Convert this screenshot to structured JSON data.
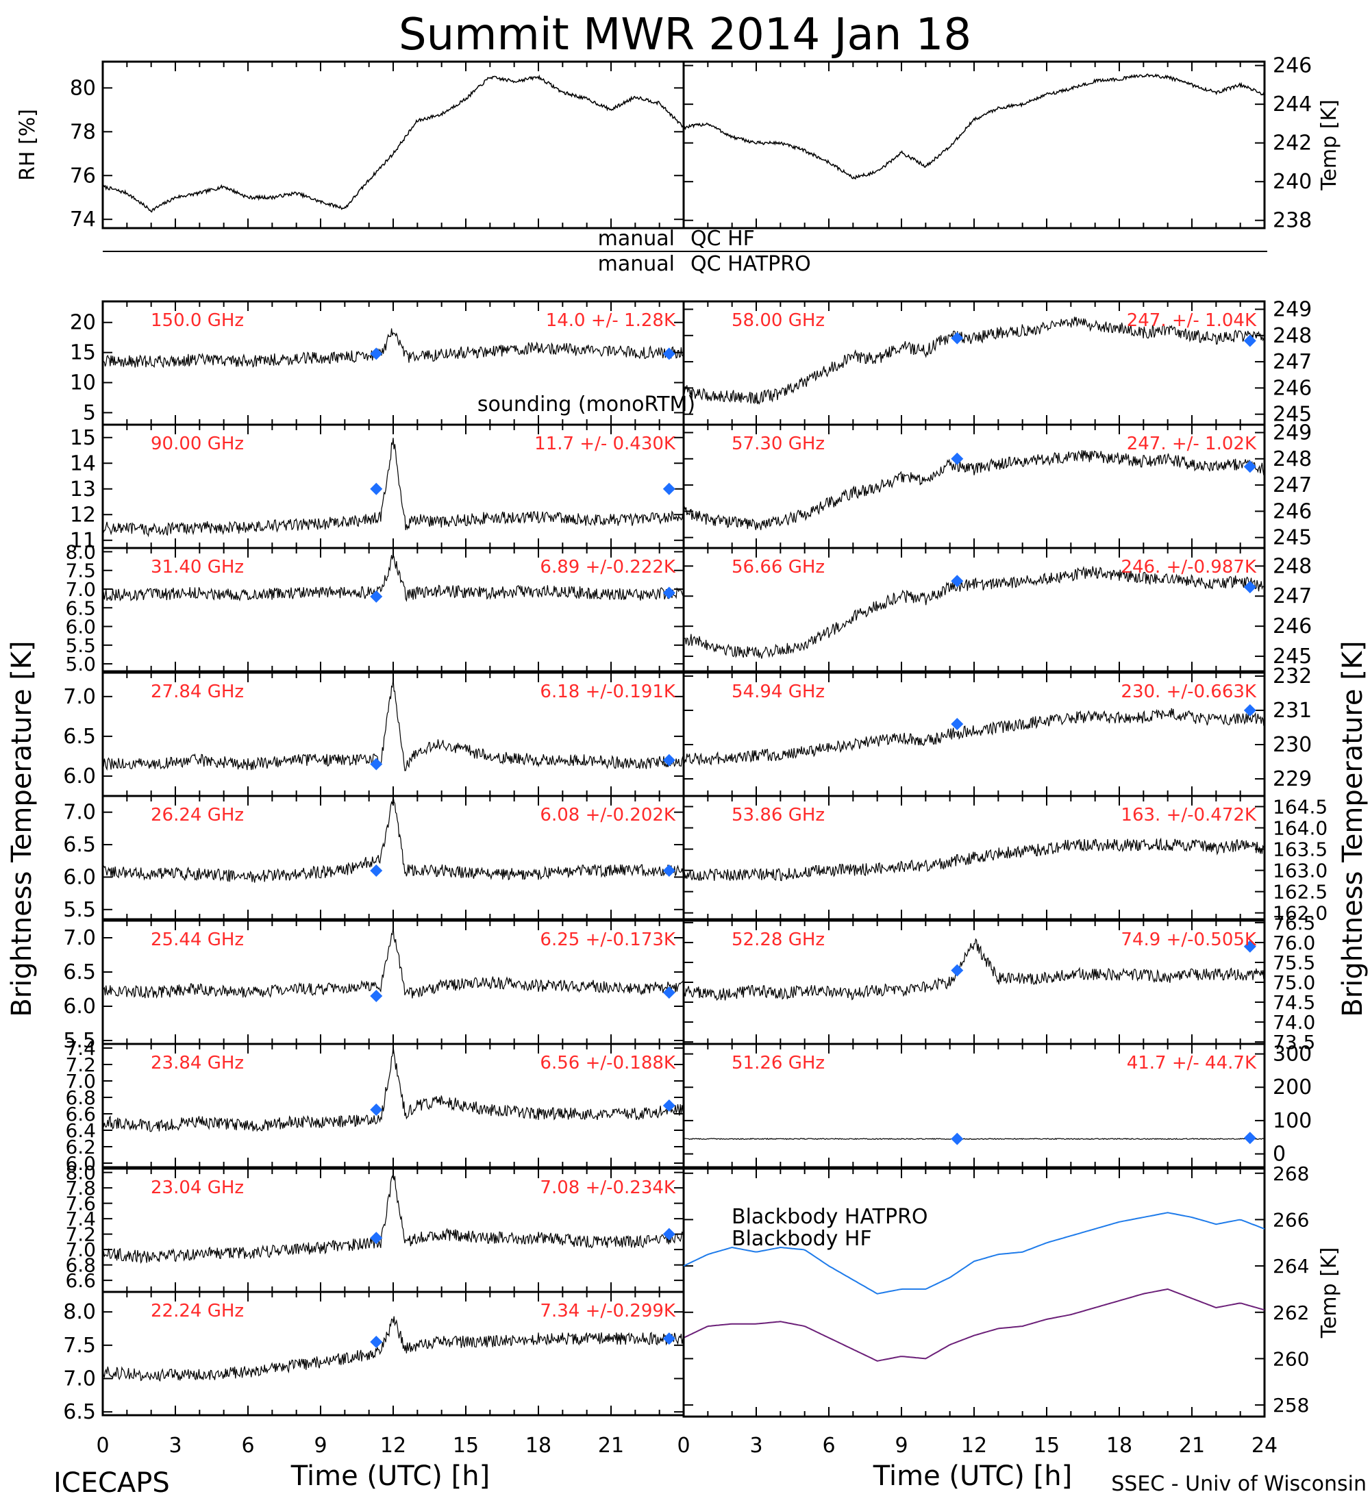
{
  "title": "Summit MWR 2014 Jan 18",
  "footer": {
    "left": "ICECAPS",
    "right": "SSEC - Univ of Wisconsin"
  },
  "qc": {
    "manual1": "manual",
    "qc1": "QC HF",
    "manual2": "manual",
    "qc2": "QC HATPRO"
  },
  "y_left_label": "Brightness Temperature [K]",
  "y_right_label": "Brightness Temperature [K]",
  "x_label": "Time (UTC) [h]",
  "colors": {
    "sounding": "#1e6fff",
    "hatpro": "#1e7bea",
    "hf": "#6b1f78",
    "freq": "#ff2a2a",
    "trace": "#000000"
  },
  "chart_data": [
    {
      "id": "rh",
      "type": "line",
      "ylabel": "RH [%]",
      "ylim": [
        73.6,
        81.2
      ],
      "ticks": [
        74,
        76,
        78,
        80
      ],
      "x": [
        0,
        1,
        2,
        3,
        4,
        5,
        6,
        7,
        8,
        9,
        10,
        11,
        12,
        13,
        14,
        15,
        16,
        17,
        18,
        19,
        20,
        21,
        22,
        23,
        24
      ],
      "y": [
        75.5,
        75.2,
        74.4,
        75.0,
        75.2,
        75.5,
        75.0,
        75.0,
        75.2,
        74.8,
        74.5,
        75.8,
        77.0,
        78.5,
        78.8,
        79.5,
        80.5,
        80.3,
        80.5,
        79.8,
        79.5,
        79.0,
        79.6,
        79.3,
        78.2
      ]
    },
    {
      "id": "temp",
      "type": "line",
      "ylabel": "Temp [K]",
      "ylim": [
        237.6,
        246.2
      ],
      "ticks": [
        238,
        240,
        242,
        244,
        246
      ],
      "x": [
        0,
        1,
        2,
        3,
        4,
        5,
        6,
        7,
        8,
        9,
        10,
        11,
        12,
        13,
        14,
        15,
        16,
        17,
        18,
        19,
        20,
        21,
        22,
        23,
        24
      ],
      "y": [
        242.8,
        243.0,
        242.3,
        242.0,
        242.0,
        241.6,
        241.0,
        240.2,
        240.5,
        241.5,
        240.8,
        241.8,
        243.2,
        243.8,
        244.0,
        244.5,
        244.8,
        245.2,
        245.3,
        245.5,
        245.4,
        245.0,
        244.6,
        245.0,
        244.5
      ]
    },
    {
      "id": "f150",
      "type": "line",
      "freq": "150.0 GHz",
      "stat": "14.0 +/- 1.28K",
      "ylim": [
        3,
        23.5
      ],
      "ticks": [
        5,
        10,
        15,
        20
      ],
      "x": [
        0,
        2,
        4,
        6,
        8,
        10,
        11.5,
        12,
        12.5,
        13,
        14,
        16,
        18,
        20,
        22,
        24
      ],
      "y": [
        13.5,
        13.5,
        13.8,
        13.6,
        14.0,
        14.2,
        14.8,
        18.5,
        14.3,
        14.2,
        14.8,
        15.2,
        15.8,
        15.4,
        15.0,
        15.0
      ],
      "sounding": [
        [
          11.3,
          14.8
        ],
        [
          23.4,
          14.8
        ]
      ],
      "label_extra": "sounding (monoRTM)"
    },
    {
      "id": "f58",
      "type": "line",
      "freq": "58.00 GHz",
      "stat": "247. +/- 1.04K",
      "ylim": [
        244.6,
        249.3
      ],
      "ticks": [
        245,
        246,
        247,
        248,
        249
      ],
      "x": [
        0,
        1,
        2,
        3,
        4,
        5,
        6,
        7,
        8,
        9,
        10,
        11,
        12,
        13,
        14,
        15,
        16,
        17,
        18,
        19,
        20,
        21,
        22,
        23,
        24
      ],
      "y": [
        245.9,
        245.7,
        245.7,
        245.6,
        245.8,
        246.2,
        246.7,
        247.2,
        247.1,
        247.6,
        247.4,
        248.0,
        247.9,
        248.1,
        248.2,
        248.3,
        248.5,
        248.4,
        248.3,
        248.1,
        248.2,
        248.0,
        247.9,
        248.0,
        247.9
      ],
      "sounding": [
        [
          11.3,
          247.9
        ],
        [
          23.4,
          247.8
        ]
      ]
    },
    {
      "id": "f90",
      "type": "line",
      "freq": "90.00 GHz",
      "stat": "11.7 +/- 0.430K",
      "ylim": [
        10.7,
        15.5
      ],
      "ticks": [
        11,
        12,
        13,
        14,
        15
      ],
      "x": [
        0,
        2,
        4,
        6,
        8,
        10,
        11.5,
        12,
        12.5,
        13,
        14,
        16,
        18,
        20,
        22,
        24
      ],
      "y": [
        11.5,
        11.4,
        11.5,
        11.5,
        11.6,
        11.7,
        11.9,
        15.0,
        11.6,
        11.8,
        11.7,
        11.9,
        11.9,
        11.8,
        11.8,
        11.9
      ],
      "sounding": [
        [
          11.3,
          13.0
        ],
        [
          23.4,
          13.0
        ]
      ]
    },
    {
      "id": "f573",
      "type": "line",
      "freq": "57.30 GHz",
      "stat": "247. +/- 1.02K",
      "ylim": [
        244.6,
        249.3
      ],
      "ticks": [
        245,
        246,
        247,
        248,
        249
      ],
      "x": [
        0,
        1,
        2,
        3,
        4,
        5,
        6,
        7,
        8,
        9,
        10,
        11,
        12,
        13,
        14,
        15,
        16,
        17,
        18,
        19,
        20,
        21,
        22,
        23,
        24
      ],
      "y": [
        246.0,
        245.7,
        245.6,
        245.5,
        245.6,
        245.9,
        246.3,
        246.7,
        246.9,
        247.3,
        247.2,
        247.8,
        247.6,
        247.8,
        247.9,
        248.0,
        248.1,
        248.1,
        248.0,
        247.9,
        248.0,
        247.8,
        247.7,
        247.8,
        247.6
      ],
      "sounding": [
        [
          11.3,
          248.0
        ],
        [
          23.4,
          247.7
        ]
      ]
    },
    {
      "id": "f314",
      "type": "line",
      "freq": "31.40 GHz",
      "stat": "6.89 +/-0.222K",
      "ylim": [
        4.8,
        8.1
      ],
      "ticks": [
        5.0,
        5.5,
        6.0,
        6.5,
        7.0,
        7.5,
        8.0
      ],
      "x": [
        0,
        2,
        4,
        6,
        8,
        10,
        11.5,
        12,
        12.5,
        13,
        14,
        16,
        18,
        20,
        22,
        24
      ],
      "y": [
        6.85,
        6.85,
        6.9,
        6.85,
        6.9,
        6.9,
        6.9,
        7.9,
        6.85,
        6.9,
        6.95,
        6.9,
        6.95,
        6.9,
        6.85,
        6.9
      ],
      "sounding": [
        [
          11.3,
          6.8
        ],
        [
          23.4,
          6.9
        ]
      ]
    },
    {
      "id": "f5666",
      "type": "line",
      "freq": "56.66 GHz",
      "stat": "246. +/-0.987K",
      "ylim": [
        244.5,
        248.6
      ],
      "ticks": [
        245,
        246,
        247,
        248
      ],
      "x": [
        0,
        1,
        2,
        3,
        4,
        5,
        6,
        7,
        8,
        9,
        10,
        11,
        12,
        13,
        14,
        15,
        16,
        17,
        18,
        19,
        20,
        21,
        22,
        23,
        24
      ],
      "y": [
        245.6,
        245.4,
        245.2,
        245.1,
        245.2,
        245.4,
        245.8,
        246.3,
        246.7,
        247.0,
        246.9,
        247.3,
        247.4,
        247.4,
        247.5,
        247.6,
        247.7,
        247.8,
        247.7,
        247.6,
        247.6,
        247.5,
        247.4,
        247.5,
        247.3
      ],
      "sounding": [
        [
          11.3,
          247.5
        ],
        [
          23.4,
          247.3
        ]
      ]
    },
    {
      "id": "f2784",
      "type": "line",
      "freq": "27.84 GHz",
      "stat": "6.18 +/-0.191K",
      "ylim": [
        5.75,
        7.3
      ],
      "ticks": [
        6.0,
        6.5,
        7.0
      ],
      "x": [
        0,
        2,
        4,
        6,
        8,
        10,
        11.5,
        12,
        12.5,
        13,
        14,
        16,
        18,
        20,
        22,
        24
      ],
      "y": [
        6.15,
        6.15,
        6.2,
        6.15,
        6.2,
        6.2,
        6.2,
        7.2,
        6.1,
        6.3,
        6.4,
        6.25,
        6.2,
        6.2,
        6.15,
        6.2
      ],
      "sounding": [
        [
          11.3,
          6.15
        ],
        [
          23.4,
          6.2
        ]
      ]
    },
    {
      "id": "f5494",
      "type": "line",
      "freq": "54.94 GHz",
      "stat": "230. +/-0.663K",
      "ylim": [
        228.5,
        232.1
      ],
      "ticks": [
        229,
        230,
        231,
        232
      ],
      "x": [
        0,
        1,
        2,
        3,
        4,
        5,
        6,
        7,
        8,
        9,
        10,
        11,
        12,
        13,
        14,
        15,
        16,
        17,
        18,
        19,
        20,
        21,
        22,
        23,
        24
      ],
      "y": [
        229.6,
        229.6,
        229.6,
        229.7,
        229.7,
        229.8,
        229.9,
        230.0,
        230.1,
        230.2,
        230.1,
        230.3,
        230.4,
        230.5,
        230.6,
        230.7,
        230.8,
        230.8,
        230.8,
        230.8,
        230.9,
        230.8,
        230.7,
        230.8,
        230.7
      ],
      "sounding": [
        [
          11.3,
          230.6
        ],
        [
          23.4,
          231.0
        ]
      ]
    },
    {
      "id": "f2624",
      "type": "line",
      "freq": "26.24 GHz",
      "stat": "6.08 +/-0.202K",
      "ylim": [
        5.35,
        7.25
      ],
      "ticks": [
        5.5,
        6.0,
        6.5,
        7.0
      ],
      "x": [
        0,
        2,
        4,
        6,
        8,
        10,
        11.5,
        12,
        12.5,
        13,
        14,
        16,
        18,
        20,
        22,
        24
      ],
      "y": [
        6.1,
        6.05,
        6.05,
        6.0,
        6.05,
        6.1,
        6.3,
        7.2,
        6.1,
        6.1,
        6.1,
        6.05,
        6.05,
        6.1,
        6.1,
        6.1
      ],
      "sounding": [
        [
          11.3,
          6.1
        ],
        [
          23.4,
          6.1
        ]
      ]
    },
    {
      "id": "f5386",
      "type": "line",
      "freq": "53.86 GHz",
      "stat": "163. +/-0.472K",
      "ylim": [
        161.85,
        164.75
      ],
      "ticks": [
        162.0,
        162.5,
        163.0,
        163.5,
        164.0,
        164.5
      ],
      "x": [
        0,
        1,
        2,
        3,
        4,
        5,
        6,
        7,
        8,
        9,
        10,
        11,
        12,
        13,
        14,
        15,
        16,
        17,
        18,
        19,
        20,
        21,
        22,
        23,
        24
      ],
      "y": [
        162.9,
        162.9,
        162.9,
        162.9,
        162.9,
        162.95,
        163.0,
        163.0,
        163.05,
        163.1,
        163.1,
        163.2,
        163.3,
        163.4,
        163.45,
        163.5,
        163.6,
        163.6,
        163.6,
        163.6,
        163.6,
        163.6,
        163.5,
        163.6,
        163.5
      ]
    },
    {
      "id": "f2544",
      "type": "line",
      "freq": "25.44 GHz",
      "stat": "6.25 +/-0.173K",
      "ylim": [
        5.45,
        7.25
      ],
      "ticks": [
        5.5,
        6.0,
        6.5,
        7.0
      ],
      "x": [
        0,
        2,
        4,
        6,
        8,
        10,
        11.5,
        12,
        12.5,
        13,
        14,
        16,
        18,
        20,
        22,
        24
      ],
      "y": [
        6.25,
        6.2,
        6.25,
        6.2,
        6.25,
        6.25,
        6.3,
        7.1,
        6.2,
        6.2,
        6.3,
        6.35,
        6.3,
        6.3,
        6.25,
        6.3
      ],
      "sounding": [
        [
          11.3,
          6.15
        ],
        [
          23.4,
          6.2
        ]
      ]
    },
    {
      "id": "f5228",
      "type": "line",
      "freq": "52.28 GHz",
      "stat": "74.9 +/-0.505K",
      "ylim": [
        73.45,
        76.55
      ],
      "ticks": [
        73.5,
        74.0,
        74.5,
        75.0,
        75.5,
        76.0,
        76.5
      ],
      "x": [
        0,
        1,
        2,
        3,
        4,
        5,
        6,
        7,
        8,
        9,
        10,
        11,
        12,
        13,
        14,
        15,
        16,
        17,
        18,
        19,
        20,
        21,
        22,
        23,
        24
      ],
      "y": [
        74.8,
        74.7,
        74.7,
        74.8,
        74.7,
        74.8,
        74.8,
        74.7,
        74.8,
        74.8,
        74.9,
        75.0,
        76.0,
        75.1,
        75.1,
        75.1,
        75.2,
        75.2,
        75.2,
        75.2,
        75.1,
        75.2,
        75.2,
        75.2,
        75.2
      ],
      "sounding": [
        [
          11.3,
          75.3
        ],
        [
          23.4,
          75.9
        ]
      ]
    },
    {
      "id": "f2384",
      "type": "line",
      "freq": "23.84 GHz",
      "stat": "6.56 +/-0.188K",
      "ylim": [
        5.95,
        7.45
      ],
      "ticks": [
        6.0,
        6.2,
        6.4,
        6.6,
        6.8,
        7.0,
        7.2,
        7.4
      ],
      "x": [
        0,
        2,
        4,
        6,
        8,
        10,
        11.5,
        12,
        12.5,
        13,
        14,
        16,
        18,
        20,
        22,
        24
      ],
      "y": [
        6.5,
        6.45,
        6.5,
        6.45,
        6.5,
        6.5,
        6.55,
        7.35,
        6.6,
        6.7,
        6.75,
        6.65,
        6.6,
        6.6,
        6.6,
        6.65
      ],
      "sounding": [
        [
          11.3,
          6.65
        ],
        [
          23.4,
          6.7
        ]
      ]
    },
    {
      "id": "f5126",
      "type": "line",
      "freq": "51.26 GHz",
      "stat": "41.7 +/- 44.7K",
      "ylim": [
        -40,
        330
      ],
      "ticks": [
        0,
        100,
        200,
        300
      ],
      "x": [
        0,
        2,
        4,
        6,
        8,
        10,
        12,
        14,
        16,
        18,
        20,
        22,
        24
      ],
      "y": [
        45,
        45,
        45,
        45,
        45,
        45,
        45,
        45,
        45,
        45,
        45,
        45,
        45
      ],
      "sounding": [
        [
          11.3,
          45
        ],
        [
          23.4,
          48
        ]
      ]
    },
    {
      "id": "f2304",
      "type": "line",
      "freq": "23.04 GHz",
      "stat": "7.08 +/-0.234K",
      "ylim": [
        6.45,
        8.05
      ],
      "ticks": [
        6.6,
        6.8,
        7.0,
        7.2,
        7.4,
        7.6,
        7.8,
        8.0
      ],
      "x": [
        0,
        2,
        4,
        6,
        8,
        10,
        11.5,
        12,
        12.5,
        13,
        14,
        16,
        18,
        20,
        22,
        24
      ],
      "y": [
        6.95,
        6.9,
        6.95,
        6.95,
        7.0,
        7.05,
        7.1,
        8.0,
        7.1,
        7.15,
        7.2,
        7.15,
        7.15,
        7.1,
        7.1,
        7.15
      ],
      "sounding": [
        [
          11.3,
          7.15
        ],
        [
          23.4,
          7.2
        ]
      ]
    },
    {
      "id": "bb",
      "type": "line",
      "ylabel": "Temp [K]",
      "ylim": [
        257.5,
        268.2
      ],
      "ticks": [
        258,
        260,
        262,
        264,
        266,
        268
      ],
      "x": [
        0,
        1,
        2,
        3,
        4,
        5,
        6,
        7,
        8,
        9,
        10,
        11,
        12,
        13,
        14,
        15,
        16,
        17,
        18,
        19,
        20,
        21,
        22,
        23,
        24
      ],
      "series": [
        {
          "name": "Blackbody HATPRO",
          "y": [
            264.0,
            264.5,
            264.8,
            264.6,
            264.8,
            264.7,
            264.0,
            263.4,
            262.8,
            263.0,
            263.0,
            263.5,
            264.2,
            264.5,
            264.6,
            265.0,
            265.3,
            265.6,
            265.9,
            266.1,
            266.3,
            266.1,
            265.8,
            266.0,
            265.6
          ]
        },
        {
          "name": "Blackbody HF",
          "y": [
            260.9,
            261.4,
            261.5,
            261.5,
            261.6,
            261.4,
            260.9,
            260.4,
            259.9,
            260.1,
            260.0,
            260.6,
            261.0,
            261.3,
            261.4,
            261.7,
            261.9,
            262.2,
            262.5,
            262.8,
            263.0,
            262.6,
            262.2,
            262.4,
            262.1
          ]
        }
      ]
    },
    {
      "id": "f2224",
      "type": "line",
      "freq": "22.24 GHz",
      "stat": "7.34 +/-0.299K",
      "ylim": [
        6.45,
        8.3
      ],
      "ticks": [
        6.5,
        7.0,
        7.5,
        8.0
      ],
      "x": [
        0,
        2,
        4,
        6,
        8,
        10,
        11.5,
        12,
        12.5,
        13,
        14,
        16,
        18,
        20,
        22,
        24
      ],
      "y": [
        7.1,
        7.05,
        7.05,
        7.1,
        7.2,
        7.3,
        7.4,
        7.9,
        7.45,
        7.5,
        7.55,
        7.55,
        7.6,
        7.6,
        7.6,
        7.6
      ],
      "sounding": [
        [
          11.3,
          7.55
        ],
        [
          23.4,
          7.6
        ]
      ]
    }
  ],
  "x_ticks": [
    "0",
    "3",
    "6",
    "9",
    "12",
    "15",
    "18",
    "21",
    "24"
  ]
}
